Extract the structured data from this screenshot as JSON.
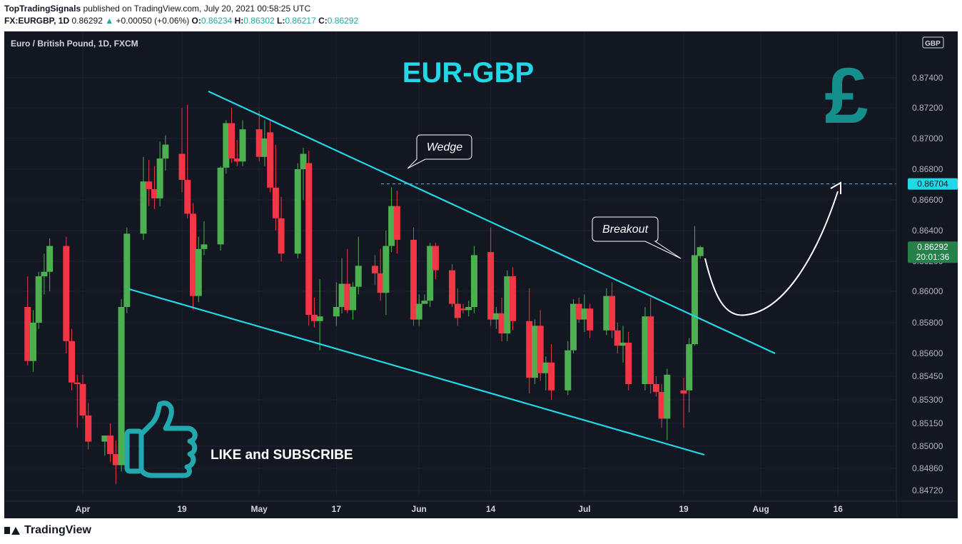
{
  "header": {
    "publisher": "TopTradingSignals",
    "published_text": "published on TradingView.com, July 20, 2021 00:58:25 UTC",
    "symbol": "FX:EURGBP, 1D",
    "price": "0.86292",
    "change": "+0.00050 (+0.06%)",
    "o_label": "O:",
    "o_value": "0.86234",
    "h_label": "H:",
    "h_value": "0.86302",
    "l_label": "L:",
    "l_value": "0.86217",
    "c_label": "C:",
    "c_value": "0.86292"
  },
  "chart_title": "EUR-GBP",
  "pane_label": "Euro / British Pound, 1D, FXCM",
  "currency_badge": "GBP",
  "pound_symbol": "£",
  "annotations": {
    "wedge": "Wedge",
    "breakout": "Breakout",
    "like": "LIKE and SUBSCRIBE"
  },
  "price_labels": {
    "target": "0.86704",
    "last_price": "0.86292",
    "countdown": "20:01:36",
    "target_value": 0.86704,
    "last_value": 0.86292
  },
  "footer": {
    "brand": "TradingView"
  },
  "colors": {
    "background": "#131722",
    "up": "#4caf50",
    "down": "#f23645",
    "trendline": "#22d8e6",
    "title": "#22d8e6",
    "pound": "#148f8c",
    "axis_text": "#b2b5be",
    "last_price_bg": "#26804a"
  },
  "chart_data": {
    "type": "candlestick",
    "title": "EUR-GBP",
    "symbol": "Euro / British Pound, 1D, FXCM",
    "ylim": [
      0.8465,
      0.8765
    ],
    "y_ticks": [
      0.8472,
      0.8486,
      0.85,
      0.8515,
      0.853,
      0.8545,
      0.856,
      0.858,
      0.86,
      0.862,
      0.864,
      0.866,
      0.868,
      0.87,
      0.872,
      0.874
    ],
    "y_tick_labels": [
      "0.84720",
      "0.84860",
      "0.85000",
      "0.85150",
      "0.85300",
      "0.85450",
      "0.85600",
      "0.85800",
      "0.86000",
      "0.86200",
      "0.86400",
      "0.86600",
      "0.86800",
      "0.87000",
      "0.87200",
      "0.87400"
    ],
    "x_labels": [
      {
        "date": "2021-04-01",
        "label": "Apr"
      },
      {
        "date": "2021-04-19",
        "label": "19"
      },
      {
        "date": "2021-05-03",
        "label": "May"
      },
      {
        "date": "2021-05-17",
        "label": "17"
      },
      {
        "date": "2021-06-01",
        "label": "Jun"
      },
      {
        "date": "2021-06-14",
        "label": "14"
      },
      {
        "date": "2021-07-01",
        "label": "Jul"
      },
      {
        "date": "2021-07-19",
        "label": "19"
      },
      {
        "date": "2021-08-02",
        "label": "Aug"
      },
      {
        "date": "2021-08-16",
        "label": "16"
      }
    ],
    "candles": [
      {
        "d": "2021-03-22",
        "o": 0.859,
        "h": 0.861,
        "l": 0.8552,
        "c": 0.8555
      },
      {
        "d": "2021-03-23",
        "o": 0.8555,
        "h": 0.8588,
        "l": 0.8548,
        "c": 0.858
      },
      {
        "d": "2021-03-24",
        "o": 0.858,
        "h": 0.8613,
        "l": 0.8576,
        "c": 0.861
      },
      {
        "d": "2021-03-25",
        "o": 0.861,
        "h": 0.8625,
        "l": 0.8598,
        "c": 0.8613
      },
      {
        "d": "2021-03-26",
        "o": 0.8613,
        "h": 0.8635,
        "l": 0.86,
        "c": 0.863
      },
      {
        "d": "2021-03-29",
        "o": 0.863,
        "h": 0.8636,
        "l": 0.856,
        "c": 0.8568
      },
      {
        "d": "2021-03-30",
        "o": 0.8568,
        "h": 0.8576,
        "l": 0.8536,
        "c": 0.8541
      },
      {
        "d": "2021-03-31",
        "o": 0.8541,
        "h": 0.8546,
        "l": 0.8512,
        "c": 0.854
      },
      {
        "d": "2021-04-01",
        "o": 0.854,
        "h": 0.8546,
        "l": 0.8518,
        "c": 0.852
      },
      {
        "d": "2021-04-02",
        "o": 0.852,
        "h": 0.8528,
        "l": 0.8498,
        "c": 0.8503
      },
      {
        "d": "2021-04-05",
        "o": 0.8503,
        "h": 0.8506,
        "l": 0.8494,
        "c": 0.8507
      },
      {
        "d": "2021-04-06",
        "o": 0.8507,
        "h": 0.8515,
        "l": 0.849,
        "c": 0.8495
      },
      {
        "d": "2021-04-07",
        "o": 0.8495,
        "h": 0.8504,
        "l": 0.8476,
        "c": 0.8488
      },
      {
        "d": "2021-04-08",
        "o": 0.8488,
        "h": 0.8595,
        "l": 0.8484,
        "c": 0.859
      },
      {
        "d": "2021-04-09",
        "o": 0.859,
        "h": 0.8642,
        "l": 0.8586,
        "c": 0.8638
      },
      {
        "d": "2021-04-12",
        "o": 0.8638,
        "h": 0.8688,
        "l": 0.8634,
        "c": 0.8672
      },
      {
        "d": "2021-04-13",
        "o": 0.8672,
        "h": 0.8686,
        "l": 0.8656,
        "c": 0.8667
      },
      {
        "d": "2021-04-14",
        "o": 0.8667,
        "h": 0.8682,
        "l": 0.8654,
        "c": 0.8661
      },
      {
        "d": "2021-04-15",
        "o": 0.8661,
        "h": 0.8698,
        "l": 0.8656,
        "c": 0.8687
      },
      {
        "d": "2021-04-16",
        "o": 0.8687,
        "h": 0.8702,
        "l": 0.8679,
        "c": 0.8696
      },
      {
        "d": "2021-04-19",
        "o": 0.869,
        "h": 0.872,
        "l": 0.8665,
        "c": 0.8673
      },
      {
        "d": "2021-04-20",
        "o": 0.8673,
        "h": 0.8722,
        "l": 0.8648,
        "c": 0.8651
      },
      {
        "d": "2021-04-21",
        "o": 0.8651,
        "h": 0.8658,
        "l": 0.8588,
        "c": 0.8597
      },
      {
        "d": "2021-04-22",
        "o": 0.8597,
        "h": 0.8636,
        "l": 0.8593,
        "c": 0.8628
      },
      {
        "d": "2021-04-23",
        "o": 0.8628,
        "h": 0.8646,
        "l": 0.8624,
        "c": 0.8631
      },
      {
        "d": "2021-04-26",
        "o": 0.8631,
        "h": 0.8682,
        "l": 0.8627,
        "c": 0.8681
      },
      {
        "d": "2021-04-27",
        "o": 0.8681,
        "h": 0.8712,
        "l": 0.8677,
        "c": 0.871
      },
      {
        "d": "2021-04-28",
        "o": 0.871,
        "h": 0.872,
        "l": 0.8684,
        "c": 0.8687
      },
      {
        "d": "2021-04-29",
        "o": 0.8687,
        "h": 0.8699,
        "l": 0.8682,
        "c": 0.8685
      },
      {
        "d": "2021-04-30",
        "o": 0.8685,
        "h": 0.8712,
        "l": 0.8682,
        "c": 0.8706
      },
      {
        "d": "2021-05-03",
        "o": 0.8706,
        "h": 0.8718,
        "l": 0.8685,
        "c": 0.8688
      },
      {
        "d": "2021-05-04",
        "o": 0.8688,
        "h": 0.8712,
        "l": 0.8682,
        "c": 0.87
      },
      {
        "d": "2021-05-05",
        "o": 0.8704,
        "h": 0.8712,
        "l": 0.8665,
        "c": 0.8668
      },
      {
        "d": "2021-05-06",
        "o": 0.8668,
        "h": 0.8696,
        "l": 0.864,
        "c": 0.8648
      },
      {
        "d": "2021-05-07",
        "o": 0.8648,
        "h": 0.8662,
        "l": 0.862,
        "c": 0.8625
      },
      {
        "d": "2021-05-10",
        "o": 0.8625,
        "h": 0.8684,
        "l": 0.8622,
        "c": 0.868
      },
      {
        "d": "2021-05-11",
        "o": 0.868,
        "h": 0.8694,
        "l": 0.866,
        "c": 0.869
      },
      {
        "d": "2021-05-12",
        "o": 0.8684,
        "h": 0.8692,
        "l": 0.8578,
        "c": 0.8585
      },
      {
        "d": "2021-05-13",
        "o": 0.8585,
        "h": 0.8596,
        "l": 0.8577,
        "c": 0.8581
      },
      {
        "d": "2021-05-14",
        "o": 0.8581,
        "h": 0.8608,
        "l": 0.8562,
        "c": 0.8584
      },
      {
        "d": "2021-05-17",
        "o": 0.8584,
        "h": 0.8606,
        "l": 0.8578,
        "c": 0.859
      },
      {
        "d": "2021-05-18",
        "o": 0.859,
        "h": 0.8622,
        "l": 0.8586,
        "c": 0.8605
      },
      {
        "d": "2021-05-19",
        "o": 0.8605,
        "h": 0.8628,
        "l": 0.8586,
        "c": 0.8588
      },
      {
        "d": "2021-05-20",
        "o": 0.8588,
        "h": 0.8606,
        "l": 0.8582,
        "c": 0.8603
      },
      {
        "d": "2021-05-21",
        "o": 0.8603,
        "h": 0.8636,
        "l": 0.8598,
        "c": 0.8617
      },
      {
        "d": "2021-05-24",
        "o": 0.8617,
        "h": 0.8624,
        "l": 0.8604,
        "c": 0.8612
      },
      {
        "d": "2021-05-25",
        "o": 0.8612,
        "h": 0.8628,
        "l": 0.8594,
        "c": 0.8599
      },
      {
        "d": "2021-05-26",
        "o": 0.8599,
        "h": 0.864,
        "l": 0.8585,
        "c": 0.863
      },
      {
        "d": "2021-05-27",
        "o": 0.863,
        "h": 0.8668,
        "l": 0.8626,
        "c": 0.8656
      },
      {
        "d": "2021-05-28",
        "o": 0.8656,
        "h": 0.8666,
        "l": 0.8625,
        "c": 0.8634
      },
      {
        "d": "2021-05-31",
        "o": 0.8634,
        "h": 0.8642,
        "l": 0.8578,
        "c": 0.8582
      },
      {
        "d": "2021-06-01",
        "o": 0.8582,
        "h": 0.8598,
        "l": 0.8578,
        "c": 0.8592
      },
      {
        "d": "2021-06-02",
        "o": 0.8592,
        "h": 0.8598,
        "l": 0.8592,
        "c": 0.8594
      },
      {
        "d": "2021-06-03",
        "o": 0.8594,
        "h": 0.8632,
        "l": 0.859,
        "c": 0.863
      },
      {
        "d": "2021-06-04",
        "o": 0.863,
        "h": 0.8632,
        "l": 0.8608,
        "c": 0.8614
      },
      {
        "d": "2021-06-07",
        "o": 0.8614,
        "h": 0.8618,
        "l": 0.859,
        "c": 0.8592
      },
      {
        "d": "2021-06-08",
        "o": 0.8592,
        "h": 0.8602,
        "l": 0.8578,
        "c": 0.8583
      },
      {
        "d": "2021-06-09",
        "o": 0.8589,
        "h": 0.8592,
        "l": 0.8586,
        "c": 0.8588
      },
      {
        "d": "2021-06-10",
        "o": 0.8588,
        "h": 0.8594,
        "l": 0.8584,
        "c": 0.859
      },
      {
        "d": "2021-06-11",
        "o": 0.859,
        "h": 0.863,
        "l": 0.8586,
        "c": 0.8624
      },
      {
        "d": "2021-06-14",
        "o": 0.8626,
        "h": 0.8642,
        "l": 0.8578,
        "c": 0.8582
      },
      {
        "d": "2021-06-15",
        "o": 0.8582,
        "h": 0.859,
        "l": 0.8576,
        "c": 0.8586
      },
      {
        "d": "2021-06-16",
        "o": 0.8586,
        "h": 0.8596,
        "l": 0.8568,
        "c": 0.8573
      },
      {
        "d": "2021-06-17",
        "o": 0.8573,
        "h": 0.8614,
        "l": 0.8568,
        "c": 0.861
      },
      {
        "d": "2021-06-18",
        "o": 0.861,
        "h": 0.8616,
        "l": 0.8575,
        "c": 0.8581
      },
      {
        "d": "2021-06-21",
        "o": 0.8581,
        "h": 0.8602,
        "l": 0.8534,
        "c": 0.8544
      },
      {
        "d": "2021-06-22",
        "o": 0.8544,
        "h": 0.8582,
        "l": 0.854,
        "c": 0.8578
      },
      {
        "d": "2021-06-23",
        "o": 0.8578,
        "h": 0.8588,
        "l": 0.8542,
        "c": 0.8547
      },
      {
        "d": "2021-06-24",
        "o": 0.8547,
        "h": 0.8558,
        "l": 0.8536,
        "c": 0.8554
      },
      {
        "d": "2021-06-25",
        "o": 0.8554,
        "h": 0.8566,
        "l": 0.853,
        "c": 0.8536
      },
      {
        "d": "2021-06-28",
        "o": 0.8536,
        "h": 0.8568,
        "l": 0.8533,
        "c": 0.8562
      },
      {
        "d": "2021-06-29",
        "o": 0.8562,
        "h": 0.8595,
        "l": 0.856,
        "c": 0.8592
      },
      {
        "d": "2021-06-30",
        "o": 0.8592,
        "h": 0.8596,
        "l": 0.858,
        "c": 0.8582
      },
      {
        "d": "2021-07-01",
        "o": 0.8582,
        "h": 0.8598,
        "l": 0.8574,
        "c": 0.8589
      },
      {
        "d": "2021-07-02",
        "o": 0.8589,
        "h": 0.8592,
        "l": 0.857,
        "c": 0.8575
      },
      {
        "d": "2021-07-05",
        "o": 0.8575,
        "h": 0.8602,
        "l": 0.8572,
        "c": 0.8597
      },
      {
        "d": "2021-07-06",
        "o": 0.8597,
        "h": 0.8606,
        "l": 0.857,
        "c": 0.8575
      },
      {
        "d": "2021-07-07",
        "o": 0.8575,
        "h": 0.858,
        "l": 0.856,
        "c": 0.8565
      },
      {
        "d": "2021-07-08",
        "o": 0.8565,
        "h": 0.8578,
        "l": 0.8554,
        "c": 0.8567
      },
      {
        "d": "2021-07-09",
        "o": 0.8567,
        "h": 0.8574,
        "l": 0.8536,
        "c": 0.854
      },
      {
        "d": "2021-07-12",
        "o": 0.854,
        "h": 0.859,
        "l": 0.8536,
        "c": 0.8584
      },
      {
        "d": "2021-07-13",
        "o": 0.8584,
        "h": 0.8596,
        "l": 0.8534,
        "c": 0.854
      },
      {
        "d": "2021-07-14",
        "o": 0.854,
        "h": 0.8545,
        "l": 0.8532,
        "c": 0.8535
      },
      {
        "d": "2021-07-15",
        "o": 0.8535,
        "h": 0.854,
        "l": 0.8512,
        "c": 0.8518
      },
      {
        "d": "2021-07-16",
        "o": 0.8518,
        "h": 0.855,
        "l": 0.8504,
        "c": 0.8546
      },
      {
        "d": "2021-07-19",
        "o": 0.8536,
        "h": 0.8544,
        "l": 0.8512,
        "c": 0.8534
      },
      {
        "d": "2021-07-20",
        "o": 0.8536,
        "h": 0.857,
        "l": 0.8522,
        "c": 0.8566
      },
      {
        "d": "2021-07-21",
        "o": 0.8566,
        "h": 0.8643,
        "l": 0.8565,
        "c": 0.8624
      },
      {
        "d": "2021-07-22",
        "o": 0.86234,
        "h": 0.86302,
        "l": 0.86217,
        "c": 0.86292
      }
    ],
    "horizontal_line": 0.86704,
    "last_price": 0.86292
  }
}
